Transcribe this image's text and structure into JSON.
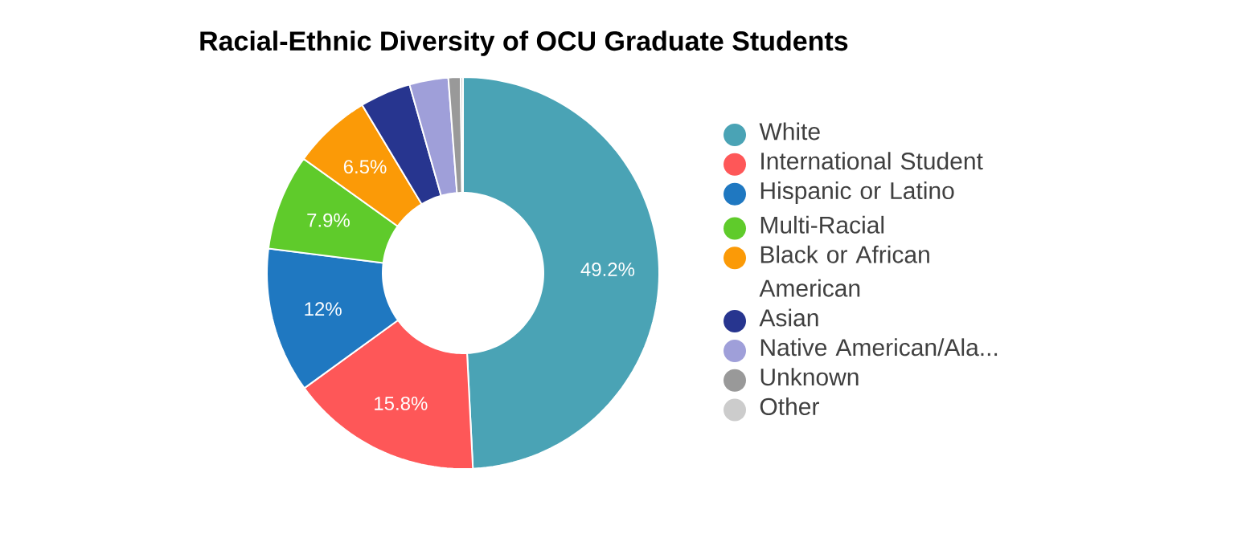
{
  "chart_data": {
    "type": "donut",
    "title": "Racial-Ethnic Diversity of OCU Graduate Students",
    "categories": [
      "White",
      "International Student",
      "Hispanic or Latino",
      "Multi-Racial",
      "Black or African American",
      "Asian",
      "Native American/Ala...",
      "Unknown",
      "Other"
    ],
    "values": [
      49.2,
      15.8,
      12,
      7.9,
      6.5,
      4.2,
      3.2,
      1.0,
      0.2
    ],
    "colors": [
      "#4aa3b5",
      "#fe5758",
      "#1f78c1",
      "#5fcb2b",
      "#fb9a07",
      "#27358f",
      "#9f9fd9",
      "#999999",
      "#cccccc"
    ],
    "value_labels": [
      "49.2%",
      "15.8%",
      "12%",
      "7.9%",
      "6.5%",
      null,
      null,
      null,
      null
    ],
    "legend": "right"
  }
}
